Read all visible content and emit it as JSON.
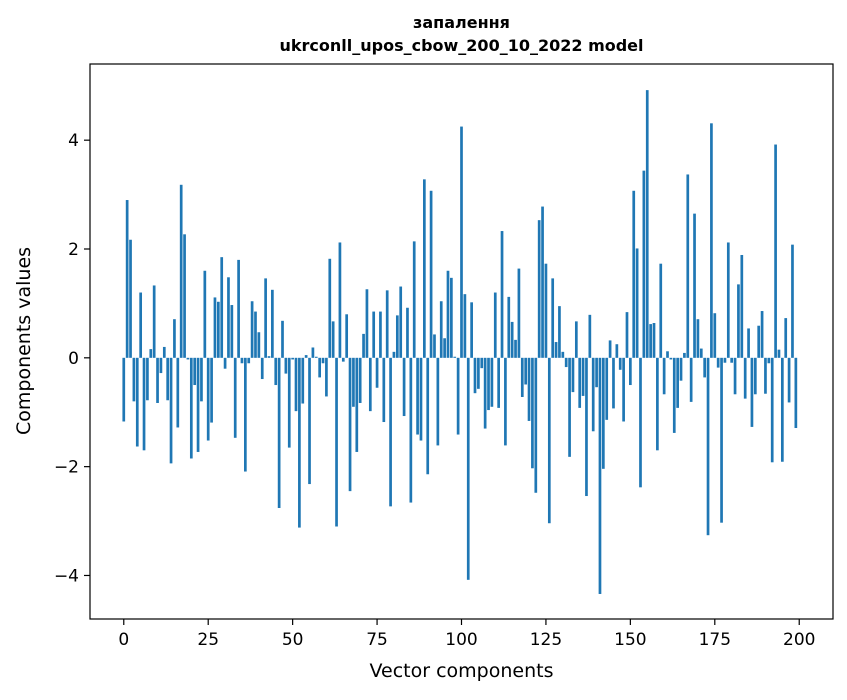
{
  "chart_data": {
    "type": "bar",
    "title_line1": "запалення",
    "title_line2": "ukrconll_upos_cbow_200_10_2022 model",
    "xlabel": "Vector components",
    "ylabel": "Components values",
    "xlim": [
      -10,
      210
    ],
    "ylim": [
      -4.8,
      5.4
    ],
    "xticks": [
      0,
      25,
      50,
      75,
      100,
      125,
      150,
      175,
      200
    ],
    "xtick_labels": [
      "0",
      "25",
      "50",
      "75",
      "100",
      "125",
      "150",
      "175",
      "200"
    ],
    "yticks": [
      -4,
      -2,
      0,
      2,
      4
    ],
    "ytick_labels": [
      "−4",
      "−2",
      "0",
      "2",
      "4"
    ],
    "bar_color": "#1f77b4",
    "grid": false,
    "values": [
      -1.17,
      2.9,
      2.17,
      -0.8,
      -1.63,
      1.2,
      -1.7,
      -0.78,
      0.16,
      1.33,
      -0.83,
      -0.28,
      0.2,
      -0.78,
      -1.94,
      0.71,
      -1.28,
      3.18,
      2.27,
      -0.03,
      -1.85,
      -0.5,
      -1.73,
      -0.8,
      1.6,
      -1.52,
      -1.19,
      1.11,
      1.03,
      1.85,
      -0.2,
      1.48,
      0.97,
      -1.47,
      1.8,
      -0.1,
      -2.09,
      -0.1,
      1.04,
      0.85,
      0.47,
      -0.39,
      1.46,
      0.03,
      1.25,
      -0.5,
      -2.76,
      0.68,
      -0.29,
      -1.65,
      -0.03,
      -0.98,
      -3.12,
      -0.84,
      0.05,
      -2.32,
      0.19,
      0.02,
      -0.36,
      -0.1,
      -0.71,
      1.82,
      0.67,
      -3.1,
      2.12,
      -0.07,
      0.8,
      -2.45,
      -0.9,
      -1.73,
      -0.83,
      0.44,
      1.26,
      -0.98,
      0.85,
      -0.55,
      0.85,
      -1.18,
      1.24,
      -2.73,
      0.11,
      0.78,
      1.31,
      -1.07,
      0.92,
      -2.66,
      2.14,
      -1.41,
      -1.52,
      3.28,
      -2.14,
      3.07,
      0.43,
      -1.61,
      1.04,
      0.36,
      1.6,
      1.47,
      0.02,
      -1.41,
      4.25,
      1.17,
      -4.08,
      1.02,
      -0.65,
      -0.57,
      -0.19,
      -1.3,
      -0.96,
      -0.9,
      1.2,
      -0.92,
      2.33,
      -1.61,
      1.12,
      0.66,
      0.33,
      1.64,
      -0.72,
      -0.49,
      -1.16,
      -2.03,
      -2.48,
      2.53,
      2.78,
      1.73,
      -3.04,
      1.46,
      0.29,
      0.95,
      0.11,
      -0.17,
      -1.82,
      -0.63,
      0.67,
      -0.92,
      -0.7,
      -2.54,
      0.79,
      -1.35,
      -0.54,
      -4.34,
      -2.04,
      -1.14,
      0.32,
      -0.93,
      0.25,
      -0.22,
      -1.17,
      0.84,
      -0.5,
      3.07,
      2.01,
      -2.38,
      3.44,
      4.92,
      0.62,
      0.64,
      -1.7,
      1.73,
      -0.67,
      0.12,
      -0.03,
      -1.38,
      -0.92,
      -0.42,
      0.09,
      3.37,
      -0.81,
      2.65,
      0.71,
      0.17,
      -0.36,
      -3.26,
      4.31,
      0.82,
      -0.18,
      -3.03,
      -0.09,
      2.12,
      -0.09,
      -0.67,
      1.35,
      1.89,
      -0.75,
      0.54,
      -1.27,
      -0.67,
      0.59,
      0.86,
      -0.66,
      -0.1,
      -1.92,
      3.92,
      0.15,
      -1.91,
      0.73,
      -0.82,
      2.08,
      -1.29
    ]
  }
}
